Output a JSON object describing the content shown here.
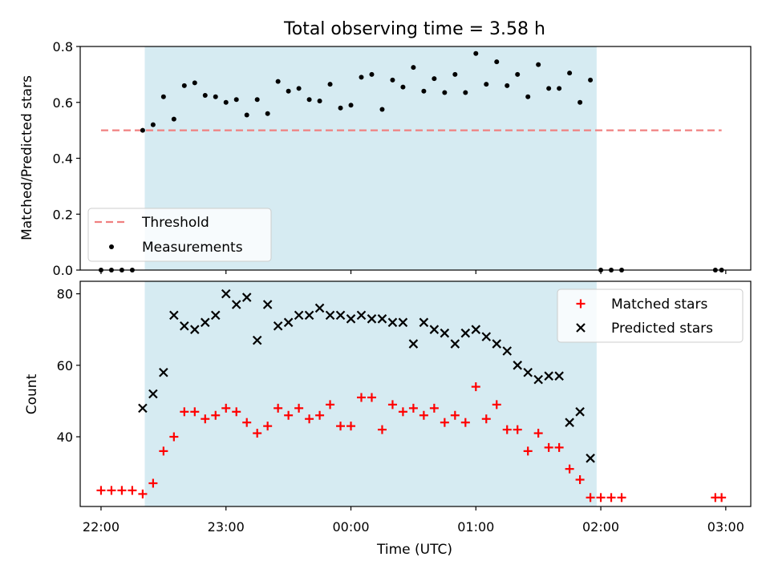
{
  "chart_data": [
    {
      "type": "scatter",
      "title": "Total observing time = 3.58 h",
      "ylabel": "Matched/Predicted stars",
      "xlim": [
        "21:50",
        "03:12"
      ],
      "ylim": [
        0.0,
        0.8
      ],
      "yticks": [
        0.0,
        0.2,
        0.4,
        0.6,
        0.8
      ],
      "ytick_labels": [
        "0.0",
        "0.2",
        "0.4",
        "0.6",
        "0.8"
      ],
      "grid": false,
      "legend_position": "lower-left",
      "observing_window": [
        "22:21",
        "01:58"
      ],
      "series": [
        {
          "name": "Threshold",
          "style": "dashed-line",
          "color": "#f08080",
          "x": [
            "22:00",
            "02:58"
          ],
          "y": [
            0.5,
            0.5
          ]
        },
        {
          "name": "Measurements",
          "style": "dot",
          "color": "#000000",
          "x": [
            "22:00",
            "22:05",
            "22:10",
            "22:15",
            "22:20",
            "22:25",
            "22:30",
            "22:35",
            "22:40",
            "22:45",
            "22:50",
            "22:55",
            "23:00",
            "23:05",
            "23:10",
            "23:15",
            "23:20",
            "23:25",
            "23:30",
            "23:35",
            "23:40",
            "23:45",
            "23:50",
            "23:55",
            "00:00",
            "00:05",
            "00:10",
            "00:15",
            "00:20",
            "00:25",
            "00:30",
            "00:35",
            "00:40",
            "00:45",
            "00:50",
            "00:55",
            "01:00",
            "01:05",
            "01:10",
            "01:15",
            "01:20",
            "01:25",
            "01:30",
            "01:35",
            "01:40",
            "01:45",
            "01:50",
            "01:55",
            "02:00",
            "02:05",
            "02:10",
            "02:55",
            "02:58"
          ],
          "y": [
            0.0,
            0.0,
            0.0,
            0.0,
            0.5,
            0.52,
            0.62,
            0.54,
            0.66,
            0.67,
            0.625,
            0.62,
            0.6,
            0.61,
            0.555,
            0.61,
            0.56,
            0.675,
            0.64,
            0.65,
            0.61,
            0.605,
            0.665,
            0.58,
            0.59,
            0.69,
            0.7,
            0.575,
            0.68,
            0.655,
            0.725,
            0.64,
            0.685,
            0.635,
            0.7,
            0.635,
            0.775,
            0.665,
            0.745,
            0.66,
            0.7,
            0.62,
            0.735,
            0.65,
            0.65,
            0.705,
            0.6,
            0.68,
            0.0,
            0.0,
            0.0,
            0.0,
            0.0
          ]
        }
      ]
    },
    {
      "type": "scatter",
      "xlabel": "Time (UTC)",
      "ylabel": "Count",
      "xlim": [
        "21:50",
        "03:12"
      ],
      "ylim": [
        20.5,
        83.5
      ],
      "xticks": [
        "22:00",
        "23:00",
        "00:00",
        "01:00",
        "02:00",
        "03:00"
      ],
      "yticks": [
        40,
        60,
        80
      ],
      "ytick_labels": [
        "40",
        "60",
        "80"
      ],
      "grid": false,
      "legend_position": "upper-right",
      "observing_window": [
        "22:21",
        "01:58"
      ],
      "series": [
        {
          "name": "Matched stars",
          "marker": "+",
          "color": "#ff0000",
          "x": [
            "22:00",
            "22:05",
            "22:10",
            "22:15",
            "22:20",
            "22:25",
            "22:30",
            "22:35",
            "22:40",
            "22:45",
            "22:50",
            "22:55",
            "23:00",
            "23:05",
            "23:10",
            "23:15",
            "23:20",
            "23:25",
            "23:30",
            "23:35",
            "23:40",
            "23:45",
            "23:50",
            "23:55",
            "00:00",
            "00:05",
            "00:10",
            "00:15",
            "00:20",
            "00:25",
            "00:30",
            "00:35",
            "00:40",
            "00:45",
            "00:50",
            "00:55",
            "01:00",
            "01:05",
            "01:10",
            "01:15",
            "01:20",
            "01:25",
            "01:30",
            "01:35",
            "01:40",
            "01:45",
            "01:50",
            "01:55",
            "02:00",
            "02:05",
            "02:10",
            "02:55",
            "02:58"
          ],
          "y": [
            25,
            25,
            25,
            25,
            24,
            27,
            36,
            40,
            47,
            47,
            45,
            46,
            48,
            47,
            44,
            41,
            43,
            48,
            46,
            48,
            45,
            46,
            49,
            43,
            43,
            51,
            51,
            42,
            49,
            47,
            48,
            46,
            48,
            44,
            46,
            44,
            54,
            45,
            49,
            42,
            42,
            36,
            41,
            37,
            37,
            31,
            28,
            23,
            23,
            23,
            23,
            23,
            23
          ]
        },
        {
          "name": "Predicted stars",
          "marker": "x",
          "color": "#000000",
          "x": [
            "22:20",
            "22:25",
            "22:30",
            "22:35",
            "22:40",
            "22:45",
            "22:50",
            "22:55",
            "23:00",
            "23:05",
            "23:10",
            "23:15",
            "23:20",
            "23:25",
            "23:30",
            "23:35",
            "23:40",
            "23:45",
            "23:50",
            "23:55",
            "00:00",
            "00:05",
            "00:10",
            "00:15",
            "00:20",
            "00:25",
            "00:30",
            "00:35",
            "00:40",
            "00:45",
            "00:50",
            "00:55",
            "01:00",
            "01:05",
            "01:10",
            "01:15",
            "01:20",
            "01:25",
            "01:30",
            "01:35",
            "01:40",
            "01:45",
            "01:50",
            "01:55"
          ],
          "y": [
            48,
            52,
            58,
            74,
            71,
            70,
            72,
            74,
            80,
            77,
            79,
            67,
            77,
            71,
            72,
            74,
            74,
            76,
            74,
            74,
            73,
            74,
            73,
            73,
            72,
            72,
            66,
            72,
            70,
            69,
            66,
            69,
            70,
            68,
            66,
            64,
            60,
            58,
            56,
            57,
            57,
            44,
            47,
            34
          ]
        }
      ]
    }
  ]
}
